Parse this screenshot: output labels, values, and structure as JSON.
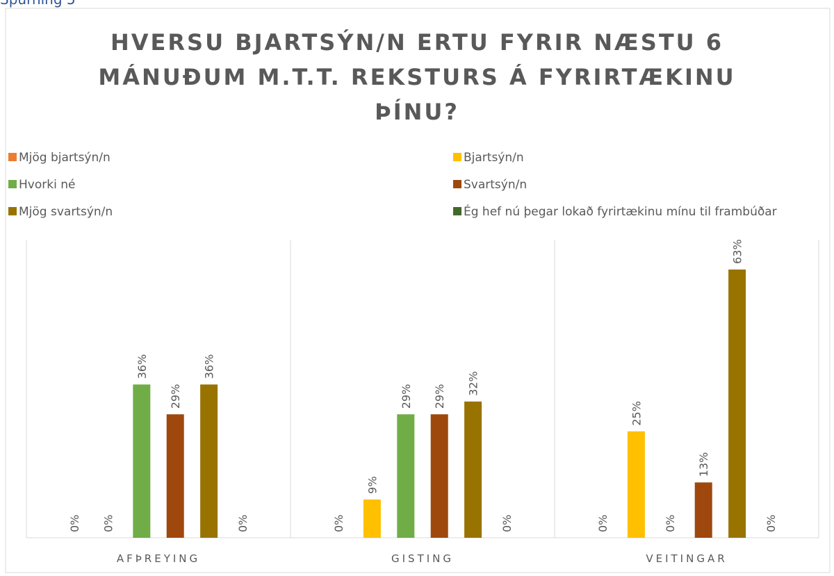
{
  "header": "Spurning 5",
  "chart_data": {
    "type": "bar",
    "title": [
      "HVERSU BJARTSÝN/N ERTU FYRIR NÆSTU 6",
      "MÁNUÐUM M.T.T. REKSTURS Á FYRIRTÆKINU",
      "ÞÍNU?"
    ],
    "categories": [
      "AFÞREYING",
      "GISTING",
      "VEITINGAR"
    ],
    "ylim": [
      0,
      70
    ],
    "series": [
      {
        "name": "Mjög bjartsýn/n",
        "color": "#ED7D31",
        "values": [
          0,
          0,
          0
        ],
        "value_labels": [
          "0%",
          "0%",
          "0%"
        ]
      },
      {
        "name": "Bjartsýn/n",
        "color": "#FFC000",
        "values": [
          0,
          9,
          25
        ],
        "value_labels": [
          "0%",
          "9%",
          "25%"
        ]
      },
      {
        "name": "Hvorki né",
        "color": "#70AD47",
        "values": [
          36,
          29,
          0
        ],
        "value_labels": [
          "36%",
          "29%",
          "0%"
        ]
      },
      {
        "name": "Svartsýn/n",
        "color": "#9E480E",
        "values": [
          29,
          29,
          13
        ],
        "value_labels": [
          "29%",
          "29%",
          "13%"
        ]
      },
      {
        "name": "Mjög svartsýn/n",
        "color": "#997300",
        "values": [
          36,
          32,
          63
        ],
        "value_labels": [
          "36%",
          "32%",
          "63%"
        ]
      },
      {
        "name": "Ég hef nú þegar lokað fyrirtækinu mínu til frambúðar",
        "color": "#43682B",
        "values": [
          0,
          0,
          0
        ],
        "value_labels": [
          "0%",
          "0%",
          "0%"
        ]
      }
    ]
  }
}
